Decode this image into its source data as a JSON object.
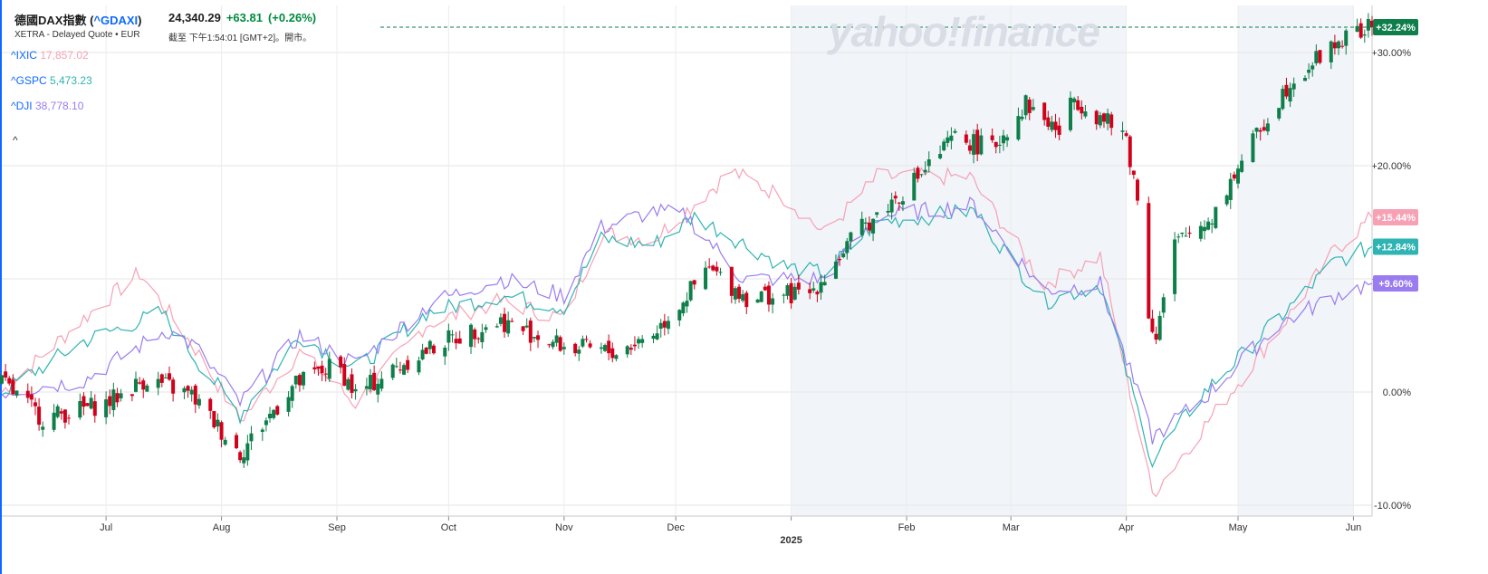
{
  "header": {
    "name": "德國DAX指數",
    "symbol": "^GDAXI",
    "price": "24,340.29",
    "change": "+63.81",
    "change_pct": "(+0.26%)",
    "exchange_line": "XETRA - Delayed Quote • EUR",
    "time_line": "截至 下午1:54:01 [GMT+2]。開市。"
  },
  "comparisons": [
    {
      "symbol": "^IXIC",
      "value": "17,857.02",
      "color": "#f7a1b4"
    },
    {
      "symbol": "^GSPC",
      "value": "5,473.23",
      "color": "#2fb3b3"
    },
    {
      "symbol": "^DJI",
      "value": "38,778.10",
      "color": "#9a7cf0"
    }
  ],
  "collapse_glyph": "^",
  "watermark": "yahoo!finance",
  "chart_data": {
    "type": "candlestick+line",
    "x_range": [
      "2024-06-03",
      "2025-06-06"
    ],
    "ylim": [
      -11,
      33
    ],
    "y_unit": "% change",
    "grid": true,
    "y_ticks": [
      "+30.00%",
      "+20.00%",
      "+10.00%",
      "0.00%",
      "-10.00%"
    ],
    "y_tick_values": [
      30,
      20,
      10,
      0,
      -10
    ],
    "x_ticks": [
      {
        "label": "Jul",
        "date": "2024-07-01"
      },
      {
        "label": "Aug",
        "date": "2024-08-01"
      },
      {
        "label": "Sep",
        "date": "2024-09-01"
      },
      {
        "label": "Oct",
        "date": "2024-10-01"
      },
      {
        "label": "Nov",
        "date": "2024-11-01"
      },
      {
        "label": "Dec",
        "date": "2024-12-01"
      },
      {
        "label": "2025",
        "date": "2025-01-01"
      },
      {
        "label": "Feb",
        "date": "2025-02-01"
      },
      {
        "label": "Mar",
        "date": "2025-03-01"
      },
      {
        "label": "Apr",
        "date": "2025-04-01"
      },
      {
        "label": "May",
        "date": "2025-05-01"
      },
      {
        "label": "Jun",
        "date": "2025-06-01"
      }
    ],
    "shaded_ranges": [
      [
        "2025-01-01",
        "2025-04-01"
      ],
      [
        "2025-05-01",
        "2025-06-01"
      ]
    ],
    "candle_up_color": "#0e7e4a",
    "candle_down_color": "#d0021b",
    "main_anchors": [
      [
        "2024-06-03",
        0.8
      ],
      [
        "2024-06-14",
        -2.3
      ],
      [
        "2024-07-01",
        -1.0
      ],
      [
        "2024-07-12",
        1.2
      ],
      [
        "2024-07-24",
        -0.3
      ],
      [
        "2024-08-06",
        -5.4
      ],
      [
        "2024-08-20",
        0.5
      ],
      [
        "2024-09-01",
        2.5
      ],
      [
        "2024-09-06",
        -0.2
      ],
      [
        "2024-09-20",
        2.8
      ],
      [
        "2024-09-30",
        4.5
      ],
      [
        "2024-10-15",
        6.3
      ],
      [
        "2024-11-01",
        4.0
      ],
      [
        "2024-11-15",
        3.5
      ],
      [
        "2024-11-25",
        5.2
      ],
      [
        "2024-12-10",
        10.8
      ],
      [
        "2024-12-20",
        8.4
      ],
      [
        "2025-01-06",
        8.7
      ],
      [
        "2025-01-20",
        14.5
      ],
      [
        "2025-02-01",
        18.0
      ],
      [
        "2025-02-14",
        22.5
      ],
      [
        "2025-02-24",
        21.5
      ],
      [
        "2025-03-05",
        25.5
      ],
      [
        "2025-03-14",
        23.0
      ],
      [
        "2025-03-18",
        26.0
      ],
      [
        "2025-03-26",
        24.0
      ],
      [
        "2025-04-01",
        22.5
      ],
      [
        "2025-04-04",
        17.0
      ],
      [
        "2025-04-07",
        7.0
      ],
      [
        "2025-04-09",
        5.0
      ],
      [
        "2025-04-14",
        13.0
      ],
      [
        "2025-04-24",
        15.5
      ],
      [
        "2025-05-02",
        20.5
      ],
      [
        "2025-05-15",
        27.5
      ],
      [
        "2025-05-28",
        31.0
      ],
      [
        "2025-06-06",
        32.24
      ]
    ],
    "series": [
      {
        "name": "^IXIC",
        "color": "#f7a1b4",
        "end_label": "+15.44%",
        "end_value": 15.44,
        "anchors": [
          [
            "2024-06-03",
            0.0
          ],
          [
            "2024-06-25",
            6.5
          ],
          [
            "2024-07-10",
            10.5
          ],
          [
            "2024-07-25",
            3.8
          ],
          [
            "2024-08-06",
            -2.5
          ],
          [
            "2024-08-22",
            3.5
          ],
          [
            "2024-09-06",
            -1.0
          ],
          [
            "2024-09-25",
            6.0
          ],
          [
            "2024-10-15",
            8.0
          ],
          [
            "2024-11-01",
            6.5
          ],
          [
            "2024-11-11",
            14.0
          ],
          [
            "2024-11-25",
            13.5
          ],
          [
            "2024-12-16",
            19.5
          ],
          [
            "2024-12-31",
            17.0
          ],
          [
            "2025-01-10",
            14.0
          ],
          [
            "2025-01-24",
            19.0
          ],
          [
            "2025-02-18",
            19.0
          ],
          [
            "2025-03-10",
            9.5
          ],
          [
            "2025-03-25",
            12.0
          ],
          [
            "2025-04-08",
            -9.0
          ],
          [
            "2025-04-22",
            -3.0
          ],
          [
            "2025-05-12",
            5.5
          ],
          [
            "2025-05-27",
            12.5
          ],
          [
            "2025-06-06",
            15.44
          ]
        ]
      },
      {
        "name": "^GSPC",
        "color": "#2fb3b3",
        "end_label": "+12.84%",
        "end_value": 12.84,
        "anchors": [
          [
            "2024-06-03",
            0.0
          ],
          [
            "2024-06-25",
            4.5
          ],
          [
            "2024-07-16",
            7.0
          ],
          [
            "2024-07-25",
            3.0
          ],
          [
            "2024-08-06",
            -2.0
          ],
          [
            "2024-08-22",
            5.0
          ],
          [
            "2024-09-06",
            2.0
          ],
          [
            "2024-09-25",
            7.0
          ],
          [
            "2024-10-15",
            8.5
          ],
          [
            "2024-11-01",
            7.5
          ],
          [
            "2024-11-11",
            13.5
          ],
          [
            "2024-11-25",
            13.0
          ],
          [
            "2024-12-06",
            15.5
          ],
          [
            "2024-12-31",
            11.0
          ],
          [
            "2025-01-10",
            10.5
          ],
          [
            "2025-01-24",
            15.0
          ],
          [
            "2025-02-19",
            16.0
          ],
          [
            "2025-03-10",
            8.0
          ],
          [
            "2025-03-25",
            9.5
          ],
          [
            "2025-04-08",
            -6.0
          ],
          [
            "2025-04-22",
            0.0
          ],
          [
            "2025-05-12",
            6.5
          ],
          [
            "2025-05-27",
            11.5
          ],
          [
            "2025-06-06",
            12.84
          ]
        ]
      },
      {
        "name": "^DJI",
        "color": "#9a7cf0",
        "end_label": "+9.60%",
        "end_value": 9.6,
        "anchors": [
          [
            "2024-06-03",
            0.0
          ],
          [
            "2024-06-25",
            1.0
          ],
          [
            "2024-07-17",
            5.5
          ],
          [
            "2024-07-25",
            4.0
          ],
          [
            "2024-08-06",
            -1.0
          ],
          [
            "2024-08-22",
            5.0
          ],
          [
            "2024-09-06",
            2.5
          ],
          [
            "2024-09-27",
            8.0
          ],
          [
            "2024-10-15",
            10.0
          ],
          [
            "2024-11-01",
            8.5
          ],
          [
            "2024-11-11",
            14.5
          ],
          [
            "2024-11-25",
            16.0
          ],
          [
            "2024-12-04",
            15.5
          ],
          [
            "2024-12-19",
            10.0
          ],
          [
            "2025-01-10",
            10.0
          ],
          [
            "2025-01-24",
            15.5
          ],
          [
            "2025-02-19",
            16.5
          ],
          [
            "2025-03-10",
            9.0
          ],
          [
            "2025-03-25",
            9.5
          ],
          [
            "2025-04-08",
            -4.0
          ],
          [
            "2025-04-22",
            -0.5
          ],
          [
            "2025-05-12",
            6.0
          ],
          [
            "2025-05-27",
            8.5
          ],
          [
            "2025-06-06",
            9.6
          ]
        ]
      }
    ],
    "last_value_label": "+32.24%",
    "last_value_color": "#0e7e4a"
  }
}
